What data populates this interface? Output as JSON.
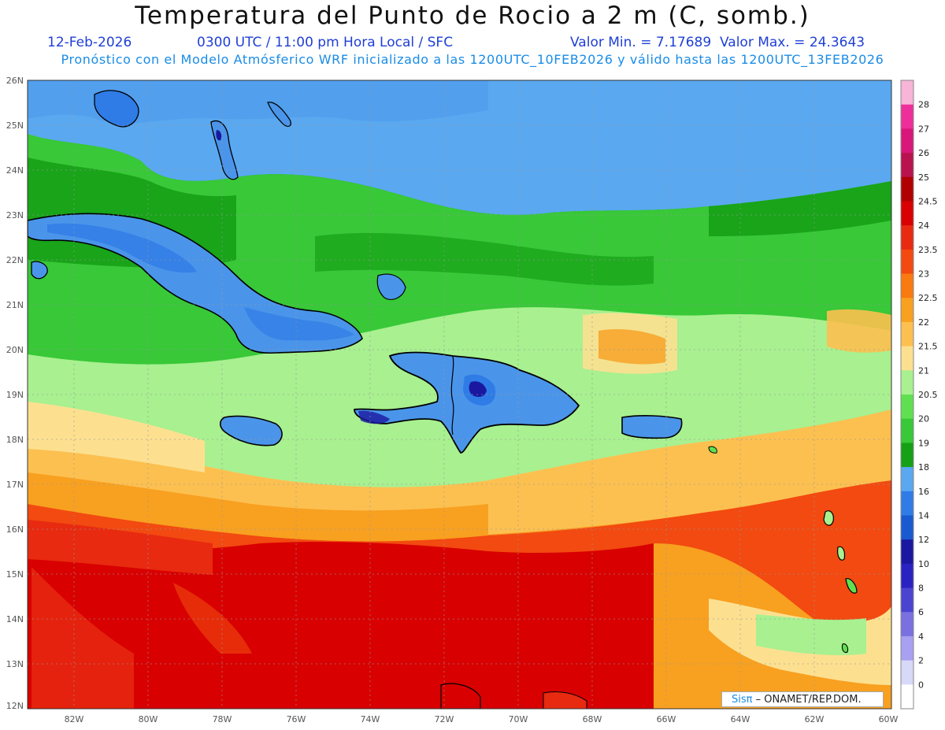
{
  "header": {
    "title": "Temperatura del Punto de Rocio a 2 m (C, somb.)",
    "date": "12-Feb-2026",
    "time": "0300 UTC / 11:00 pm Hora Local / SFC",
    "minmax": "Valor Min. = 7.17689  Valor Max. = 24.3643",
    "subtitle": "Pronóstico con el Modelo Atmósferico WRF inicializado a las 1200UTC_10FEB2026 y válido hasta las  1200UTC_13FEB2026"
  },
  "axes": {
    "lat_labels": [
      "26N",
      "25N",
      "24N",
      "23N",
      "22N",
      "21N",
      "20N",
      "19N",
      "18N",
      "17N",
      "16N",
      "15N",
      "14N",
      "13N",
      "12N"
    ],
    "lon_labels": [
      "82W",
      "80W",
      "78W",
      "76W",
      "74W",
      "72W",
      "70W",
      "68W",
      "66W",
      "64W",
      "62W",
      "60W"
    ]
  },
  "colorbar": {
    "labels": [
      "28",
      "27",
      "26",
      "25",
      "24.5",
      "24",
      "23.5",
      "23",
      "22.5",
      "22",
      "21.5",
      "21",
      "20.5",
      "20",
      "19",
      "18",
      "16",
      "14",
      "12",
      "10",
      "8",
      "6",
      "4",
      "2",
      "0"
    ],
    "colors": [
      "#f7b5d8",
      "#ee2f9a",
      "#d8177a",
      "#b8134e",
      "#b00000",
      "#d80000",
      "#e82a10",
      "#f24a10",
      "#f87a10",
      "#f8a020",
      "#fcc050",
      "#fce090",
      "#a8f090",
      "#60e050",
      "#38c838",
      "#16a016",
      "#5aa8f0",
      "#2f7ce6",
      "#1a5ad0",
      "#1a18a0",
      "#2a22c0",
      "#4a44d0",
      "#7a70e0",
      "#a8a0f0",
      "#d8d8f8",
      "#ffffff"
    ]
  },
  "credit": {
    "logo": "Sisπ",
    "text": " – ONAMET/REP.DOM."
  },
  "colors": {
    "title": "#111111",
    "date_line": "#1f3fd6",
    "subtitle": "#1a8ce6",
    "land_outline": "#000000"
  }
}
